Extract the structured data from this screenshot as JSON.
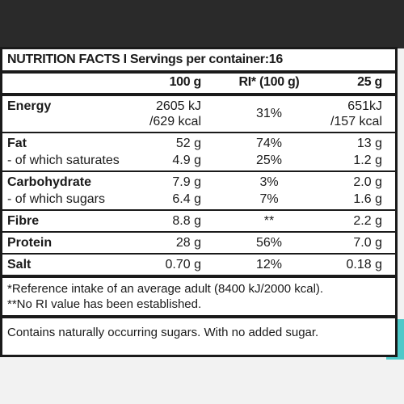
{
  "title": "NUTRITION FACTS I Servings per container:16",
  "columns": [
    "100 g",
    "RI* (100 g)",
    "25 g"
  ],
  "groups": [
    {
      "rows": [
        {
          "label": "Energy",
          "cells": [
            [
              "2605 kJ",
              "/629 kcal"
            ],
            "31%",
            [
              "651kJ",
              "/157 kcal"
            ]
          ]
        }
      ]
    },
    {
      "rows": [
        {
          "label": "Fat",
          "cells": [
            "52 g",
            "74%",
            "13 g"
          ]
        },
        {
          "label": "- of which saturates",
          "cells": [
            "4.9 g",
            "25%",
            "1.2 g"
          ]
        }
      ]
    },
    {
      "rows": [
        {
          "label": "Carbohydrate",
          "cells": [
            "7.9 g",
            "3%",
            "2.0 g"
          ]
        },
        {
          "label": "- of which sugars",
          "cells": [
            "6.4 g",
            "7%",
            "1.6 g"
          ]
        }
      ]
    },
    {
      "rows": [
        {
          "label": "Fibre",
          "cells": [
            "8.8 g",
            "**",
            "2.2 g"
          ]
        }
      ]
    },
    {
      "rows": [
        {
          "label": "Protein",
          "cells": [
            "28 g",
            "56%",
            "7.0 g"
          ]
        }
      ]
    },
    {
      "rows": [
        {
          "label": "Salt",
          "cells": [
            "0.70 g",
            "12%",
            "0.18 g"
          ]
        }
      ]
    }
  ],
  "footnotes": [
    "*Reference intake of an average adult (8400 kJ/2000 kcal).",
    "**No RI value has been established."
  ],
  "note": "Contains naturally occurring sugars. With no added sugar."
}
